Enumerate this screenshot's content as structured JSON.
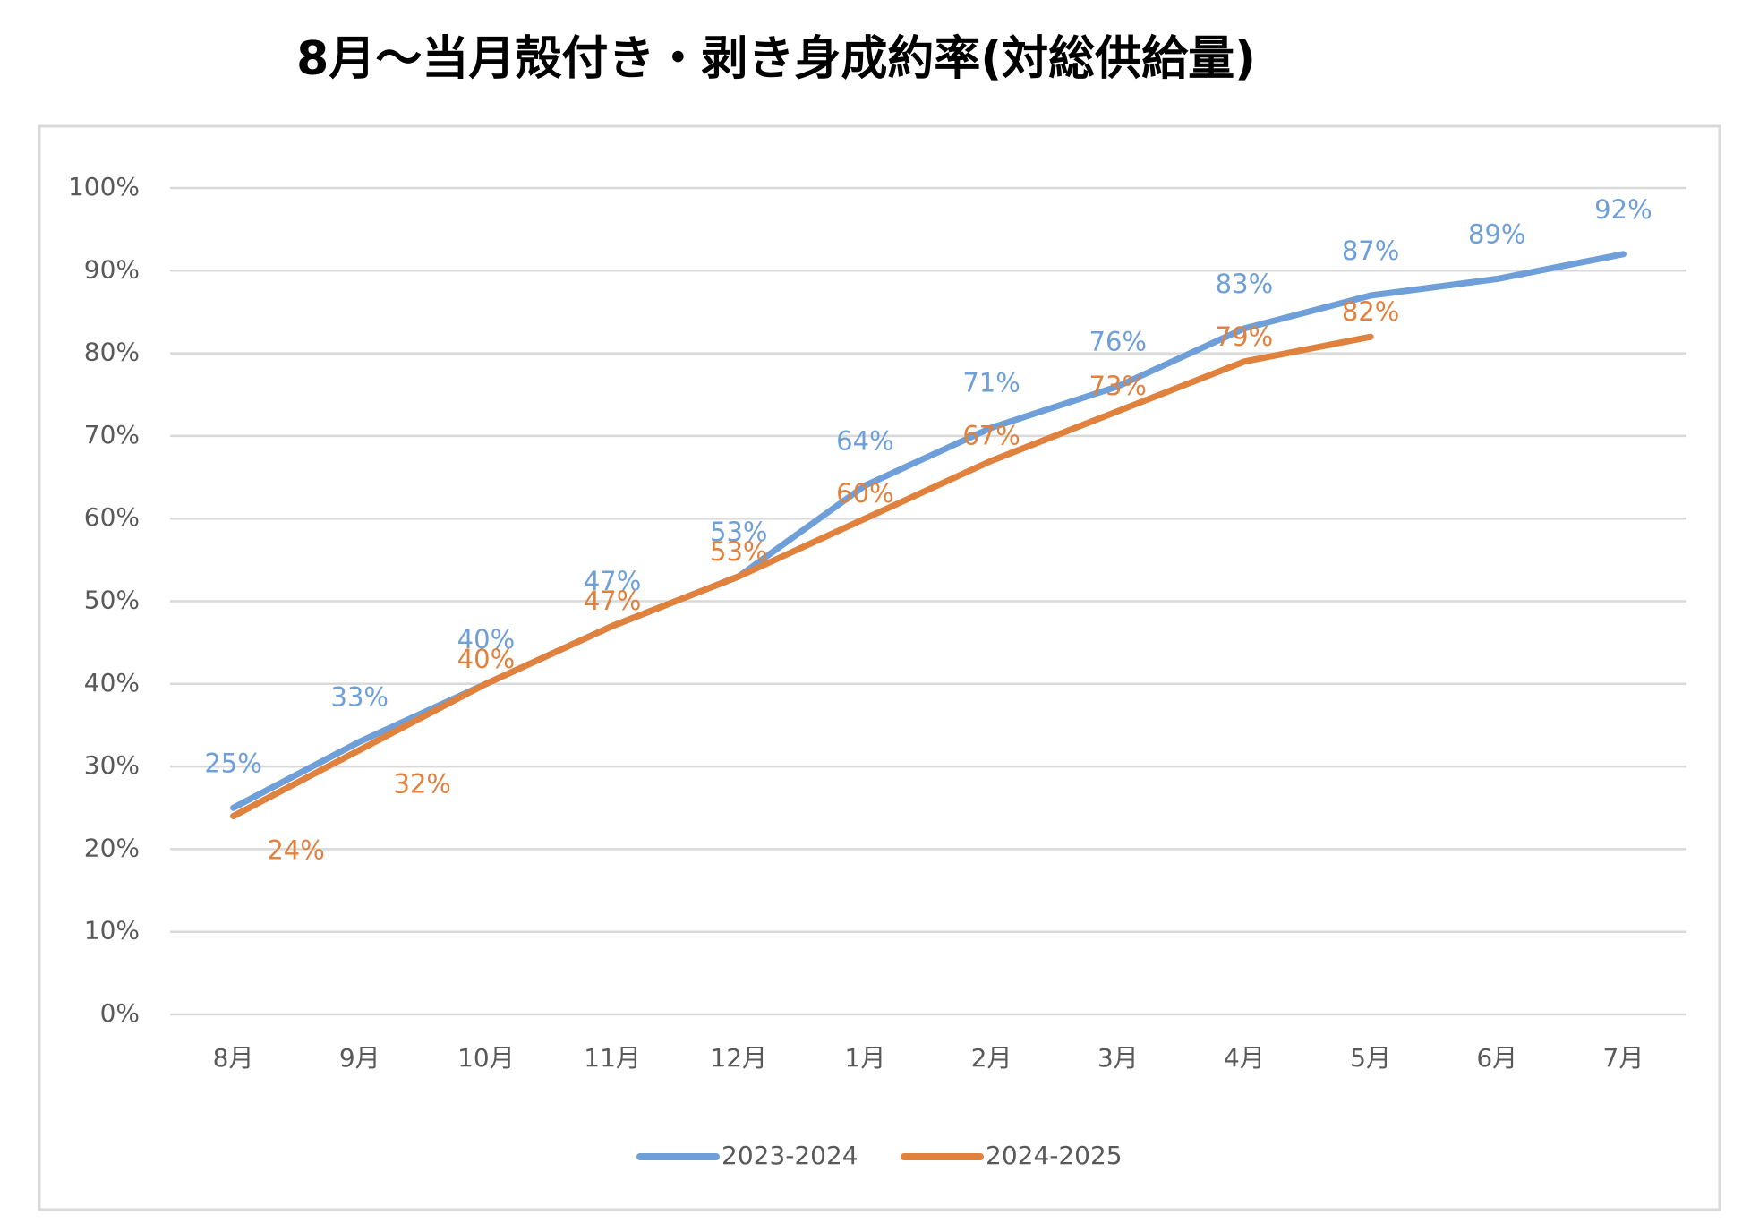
{
  "chart_data": {
    "type": "line",
    "title": "8月～当月殻付き・剥き身成約率(対総供給量)",
    "categories": [
      "8月",
      "9月",
      "10月",
      "11月",
      "12月",
      "1月",
      "2月",
      "3月",
      "4月",
      "5月",
      "6月",
      "7月"
    ],
    "series": [
      {
        "name": "2023-2024",
        "color": "#6f9fd8",
        "values": [
          25,
          33,
          40,
          47,
          53,
          64,
          71,
          76,
          83,
          87,
          89,
          92
        ],
        "value_labels": [
          "25%",
          "33%",
          "40%",
          "47%",
          "53%",
          "64%",
          "71%",
          "76%",
          "83%",
          "87%",
          "89%",
          "92%"
        ]
      },
      {
        "name": "2024-2025",
        "color": "#e0813e",
        "values": [
          24,
          32,
          40,
          47,
          53,
          60,
          67,
          73,
          79,
          82,
          null,
          null
        ],
        "value_labels": [
          "24%",
          "32%",
          "40%",
          "47%",
          "53%",
          "60%",
          "67%",
          "73%",
          "79%",
          "82%",
          null,
          null
        ]
      }
    ],
    "ylim": [
      0,
      100
    ],
    "yticks": [
      {
        "value": 0,
        "label": "0%"
      },
      {
        "value": 10,
        "label": "10%"
      },
      {
        "value": 20,
        "label": "20%"
      },
      {
        "value": 30,
        "label": "30%"
      },
      {
        "value": 40,
        "label": "40%"
      },
      {
        "value": 50,
        "label": "50%"
      },
      {
        "value": 60,
        "label": "60%"
      },
      {
        "value": 70,
        "label": "70%"
      },
      {
        "value": 80,
        "label": "80%"
      },
      {
        "value": 90,
        "label": "90%"
      },
      {
        "value": 100,
        "label": "100%"
      }
    ],
    "grid": true,
    "legend": "bottom"
  }
}
